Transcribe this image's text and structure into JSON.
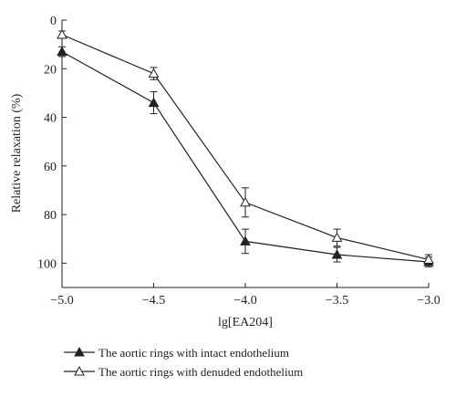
{
  "chart_data": {
    "type": "line",
    "xlabel": "lg[EA204]",
    "ylabel": "Relative relaxation (%)",
    "xlim": [
      -5.0,
      -3.0
    ],
    "ylim": [
      0,
      110
    ],
    "y_inverted": true,
    "grid": false,
    "legend_position": "bottom-left",
    "x_ticks": [
      -5.0,
      -4.5,
      -4.0,
      -3.5,
      -3.0
    ],
    "x_tick_labels": [
      "−5.0",
      "−4.5",
      "−4.0",
      "−3.5",
      "−3.0"
    ],
    "y_ticks": [
      0,
      20,
      40,
      60,
      80,
      100
    ],
    "y_tick_labels": [
      "0",
      "20",
      "40",
      "60",
      "80",
      "100"
    ],
    "series": [
      {
        "name": "The aortic rings with intact endothelium",
        "marker": "filled-triangle",
        "x": [
          -5.0,
          -4.5,
          -4.0,
          -3.5,
          -3.0
        ],
        "y": [
          13,
          34,
          91,
          96.5,
          99.5
        ],
        "error": [
          2,
          4.5,
          5,
          3,
          2
        ]
      },
      {
        "name": "The aortic rings with denuded endothelium",
        "marker": "open-triangle",
        "x": [
          -5.0,
          -4.5,
          -4.0,
          -3.5,
          -3.0
        ],
        "y": [
          6,
          22,
          75,
          89.5,
          98.5
        ],
        "error": [
          1.5,
          2.5,
          6,
          3.5,
          2
        ]
      }
    ]
  }
}
